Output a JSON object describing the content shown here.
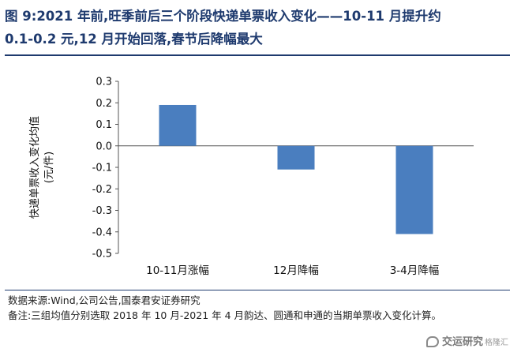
{
  "figure": {
    "title_line1": "图 9:2021 年前,旺季前后三个阶段快递单票收入变化——10-11 月提升约",
    "title_line2": "0.1-0.2 元,12 月开始回落,春节后降幅最大"
  },
  "chart_data": {
    "type": "bar",
    "categories": [
      "10-11月涨幅",
      "12月降幅",
      "3-4月降幅"
    ],
    "values": [
      0.19,
      -0.11,
      -0.41
    ],
    "ylabel_line1": "快递单票收入变化均值",
    "ylabel_line2": "(元/件)",
    "ylim": [
      -0.5,
      0.3
    ],
    "yticks": [
      "0.3",
      "0.2",
      "0.1",
      "0.0",
      "-0.1",
      "-0.2",
      "-0.3",
      "-0.4",
      "-0.5"
    ],
    "ytick_values": [
      0.3,
      0.2,
      0.1,
      0.0,
      -0.1,
      -0.2,
      -0.3,
      -0.4,
      -0.5
    ],
    "bar_color": "#4a7ebf",
    "grid": false
  },
  "notes": {
    "source": "数据来源:Wind,公司公告,国泰君安证券研究",
    "remark": "备注:三组均值分别选取 2018 年 10 月-2021 年 4 月韵达、圆通和申通的当期单票收入变化计算。"
  },
  "watermark": {
    "main": "交运研究",
    "sub": "格隆汇"
  }
}
